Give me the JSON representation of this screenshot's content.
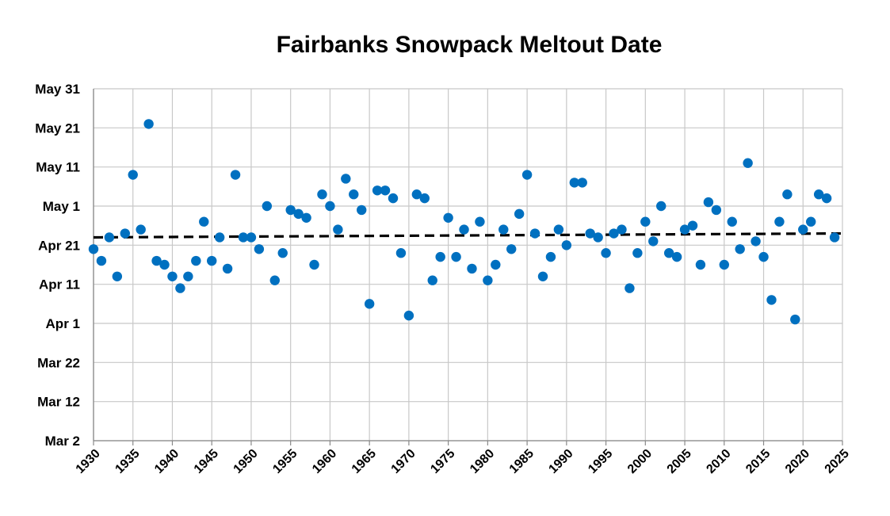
{
  "chart_data": {
    "type": "scatter",
    "title": "Fairbanks Snowpack Meltout Date",
    "xlabel": "",
    "ylabel": "",
    "xlim": [
      1930,
      2025
    ],
    "ylim": [
      "Mar 2",
      "May 31"
    ],
    "x_ticks": [
      "1930",
      "1935",
      "1940",
      "1945",
      "1950",
      "1955",
      "1960",
      "1965",
      "1970",
      "1975",
      "1980",
      "1985",
      "1990",
      "1995",
      "2000",
      "2005",
      "2010",
      "2015",
      "2020",
      "2025"
    ],
    "y_ticks": [
      "Mar 2",
      "Mar 12",
      "Mar 22",
      "Apr 1",
      "Apr 11",
      "Apr 21",
      "May 1",
      "May 11",
      "May 21",
      "May 31"
    ],
    "grid": true,
    "marker_color": "#0070C0",
    "trend_color": "#000000",
    "trendline": {
      "style": "dashed",
      "start": [
        1930,
        "Apr 23"
      ],
      "end": [
        2025,
        "Apr 24"
      ]
    },
    "points": [
      [
        1930,
        "Apr 20"
      ],
      [
        1931,
        "Apr 17"
      ],
      [
        1932,
        "Apr 23"
      ],
      [
        1933,
        "Apr 13"
      ],
      [
        1934,
        "Apr 24"
      ],
      [
        1935,
        "May 9"
      ],
      [
        1936,
        "Apr 25"
      ],
      [
        1937,
        "May 22"
      ],
      [
        1938,
        "Apr 17"
      ],
      [
        1939,
        "Apr 16"
      ],
      [
        1940,
        "Apr 13"
      ],
      [
        1941,
        "Apr 10"
      ],
      [
        1942,
        "Apr 13"
      ],
      [
        1943,
        "Apr 17"
      ],
      [
        1944,
        "Apr 27"
      ],
      [
        1945,
        "Apr 17"
      ],
      [
        1946,
        "Apr 23"
      ],
      [
        1947,
        "Apr 15"
      ],
      [
        1948,
        "May 9"
      ],
      [
        1949,
        "Apr 23"
      ],
      [
        1950,
        "Apr 23"
      ],
      [
        1951,
        "Apr 20"
      ],
      [
        1952,
        "May 1"
      ],
      [
        1953,
        "Apr 12"
      ],
      [
        1954,
        "Apr 19"
      ],
      [
        1955,
        "Apr 30"
      ],
      [
        1956,
        "Apr 29"
      ],
      [
        1957,
        "Apr 28"
      ],
      [
        1958,
        "Apr 16"
      ],
      [
        1959,
        "May 4"
      ],
      [
        1960,
        "May 1"
      ],
      [
        1961,
        "Apr 25"
      ],
      [
        1962,
        "May 8"
      ],
      [
        1963,
        "May 4"
      ],
      [
        1964,
        "Apr 30"
      ],
      [
        1965,
        "Apr 6"
      ],
      [
        1966,
        "May 5"
      ],
      [
        1967,
        "May 5"
      ],
      [
        1968,
        "May 3"
      ],
      [
        1969,
        "Apr 19"
      ],
      [
        1970,
        "Apr 3"
      ],
      [
        1971,
        "May 4"
      ],
      [
        1972,
        "May 3"
      ],
      [
        1973,
        "Apr 12"
      ],
      [
        1974,
        "Apr 18"
      ],
      [
        1975,
        "Apr 28"
      ],
      [
        1976,
        "Apr 18"
      ],
      [
        1977,
        "Apr 25"
      ],
      [
        1978,
        "Apr 15"
      ],
      [
        1979,
        "Apr 27"
      ],
      [
        1980,
        "Apr 12"
      ],
      [
        1981,
        "Apr 16"
      ],
      [
        1982,
        "Apr 25"
      ],
      [
        1983,
        "Apr 20"
      ],
      [
        1984,
        "Apr 29"
      ],
      [
        1985,
        "May 9"
      ],
      [
        1986,
        "Apr 24"
      ],
      [
        1987,
        "Apr 13"
      ],
      [
        1988,
        "Apr 18"
      ],
      [
        1989,
        "Apr 25"
      ],
      [
        1990,
        "Apr 21"
      ],
      [
        1991,
        "May 7"
      ],
      [
        1992,
        "May 7"
      ],
      [
        1993,
        "Apr 24"
      ],
      [
        1994,
        "Apr 23"
      ],
      [
        1995,
        "Apr 19"
      ],
      [
        1996,
        "Apr 24"
      ],
      [
        1997,
        "Apr 25"
      ],
      [
        1998,
        "Apr 10"
      ],
      [
        1999,
        "Apr 19"
      ],
      [
        2000,
        "Apr 27"
      ],
      [
        2001,
        "Apr 22"
      ],
      [
        2002,
        "May 1"
      ],
      [
        2003,
        "Apr 19"
      ],
      [
        2004,
        "Apr 18"
      ],
      [
        2005,
        "Apr 25"
      ],
      [
        2006,
        "Apr 26"
      ],
      [
        2007,
        "Apr 16"
      ],
      [
        2008,
        "May 2"
      ],
      [
        2009,
        "Apr 30"
      ],
      [
        2010,
        "Apr 16"
      ],
      [
        2011,
        "Apr 27"
      ],
      [
        2012,
        "Apr 20"
      ],
      [
        2013,
        "May 12"
      ],
      [
        2014,
        "Apr 22"
      ],
      [
        2015,
        "Apr 18"
      ],
      [
        2016,
        "Apr 7"
      ],
      [
        2017,
        "Apr 27"
      ],
      [
        2018,
        "May 4"
      ],
      [
        2019,
        "Apr 2"
      ],
      [
        2020,
        "Apr 25"
      ],
      [
        2021,
        "Apr 27"
      ],
      [
        2022,
        "May 4"
      ],
      [
        2023,
        "May 3"
      ],
      [
        2024,
        "Apr 23"
      ]
    ]
  }
}
